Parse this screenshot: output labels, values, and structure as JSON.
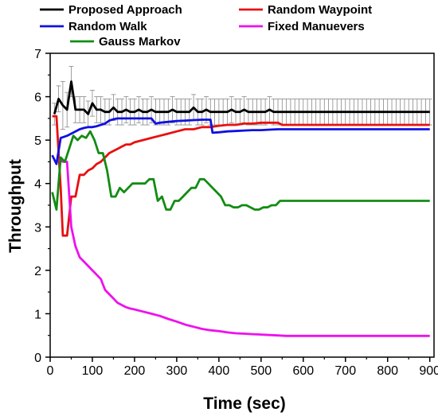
{
  "chart_data": {
    "type": "line",
    "xlabel": "Time (sec)",
    "ylabel": "Throughput",
    "xlim": [
      0,
      910
    ],
    "ylim": [
      0,
      7
    ],
    "xticks": [
      0,
      100,
      200,
      300,
      400,
      500,
      600,
      700,
      800,
      900
    ],
    "yticks": [
      0,
      1,
      2,
      3,
      4,
      5,
      6,
      7
    ],
    "grid": false,
    "legend_position": "top",
    "series": [
      {
        "name": "Proposed Approach",
        "color": "#000000",
        "error_bars": true,
        "x": [
          10,
          20,
          30,
          40,
          50,
          60,
          70,
          80,
          90,
          100,
          110,
          120,
          130,
          140,
          150,
          160,
          170,
          180,
          190,
          200,
          210,
          220,
          230,
          240,
          250,
          260,
          270,
          280,
          290,
          300,
          310,
          320,
          330,
          340,
          350,
          360,
          370,
          380,
          390,
          400,
          410,
          420,
          430,
          440,
          450,
          460,
          470,
          480,
          490,
          500,
          510,
          520,
          530,
          540,
          550,
          560,
          570,
          580,
          590,
          600,
          610,
          620,
          630,
          640,
          650,
          660,
          670,
          680,
          690,
          700,
          710,
          720,
          730,
          740,
          750,
          760,
          770,
          780,
          790,
          800,
          810,
          820,
          830,
          840,
          850,
          860,
          870,
          880,
          890,
          900
        ],
        "y": [
          5.6,
          5.95,
          5.8,
          5.7,
          6.35,
          5.7,
          5.7,
          5.7,
          5.6,
          5.85,
          5.7,
          5.7,
          5.65,
          5.65,
          5.75,
          5.65,
          5.65,
          5.7,
          5.65,
          5.65,
          5.7,
          5.65,
          5.65,
          5.7,
          5.65,
          5.65,
          5.65,
          5.65,
          5.7,
          5.65,
          5.65,
          5.65,
          5.65,
          5.75,
          5.65,
          5.65,
          5.7,
          5.65,
          5.65,
          5.65,
          5.65,
          5.65,
          5.7,
          5.65,
          5.65,
          5.7,
          5.65,
          5.65,
          5.65,
          5.65,
          5.65,
          5.7,
          5.65,
          5.65,
          5.65,
          5.65,
          5.65,
          5.65,
          5.65,
          5.65,
          5.65,
          5.65,
          5.65,
          5.65,
          5.65,
          5.65,
          5.65,
          5.65,
          5.65,
          5.65,
          5.65,
          5.65,
          5.65,
          5.65,
          5.65,
          5.65,
          5.65,
          5.65,
          5.65,
          5.65,
          5.65,
          5.65,
          5.65,
          5.65,
          5.65,
          5.65,
          5.65,
          5.65,
          5.65,
          5.65
        ],
        "err": [
          0.25,
          0.3,
          0.55,
          0.4,
          0.35,
          0.3,
          0.3,
          0.3,
          0.3,
          0.3,
          0.3,
          0.3,
          0.3,
          0.3,
          0.3,
          0.3,
          0.3,
          0.3,
          0.3,
          0.3,
          0.3,
          0.3,
          0.3,
          0.3,
          0.3,
          0.3,
          0.3,
          0.3,
          0.3,
          0.3,
          0.3,
          0.3,
          0.3,
          0.3,
          0.3,
          0.3,
          0.3,
          0.3,
          0.3,
          0.3,
          0.3,
          0.3,
          0.3,
          0.3,
          0.3,
          0.3,
          0.3,
          0.3,
          0.3,
          0.3,
          0.3,
          0.3,
          0.3,
          0.3,
          0.3,
          0.3,
          0.3,
          0.3,
          0.3,
          0.3,
          0.3,
          0.3,
          0.3,
          0.3,
          0.3,
          0.3,
          0.3,
          0.3,
          0.3,
          0.3,
          0.3,
          0.3,
          0.3,
          0.3,
          0.3,
          0.3,
          0.3,
          0.3,
          0.3,
          0.3,
          0.3,
          0.3,
          0.3,
          0.3,
          0.3,
          0.3,
          0.3,
          0.3,
          0.3,
          0.3
        ]
      },
      {
        "name": "Random Waypoint",
        "color": "#e8100f",
        "x": [
          5,
          15,
          25,
          30,
          40,
          50,
          60,
          70,
          80,
          90,
          100,
          110,
          120,
          130,
          140,
          150,
          160,
          170,
          180,
          190,
          200,
          220,
          240,
          260,
          280,
          300,
          320,
          340,
          360,
          380,
          400,
          420,
          440,
          460,
          480,
          500,
          520,
          540,
          550,
          560,
          600,
          700,
          800,
          900
        ],
        "y": [
          5.55,
          5.55,
          3.9,
          2.8,
          2.8,
          3.7,
          3.7,
          4.2,
          4.2,
          4.3,
          4.35,
          4.45,
          4.5,
          4.6,
          4.7,
          4.75,
          4.8,
          4.85,
          4.9,
          4.9,
          4.95,
          5.0,
          5.05,
          5.1,
          5.15,
          5.2,
          5.25,
          5.25,
          5.3,
          5.3,
          5.33,
          5.35,
          5.35,
          5.38,
          5.38,
          5.4,
          5.4,
          5.4,
          5.35,
          5.35,
          5.35,
          5.35,
          5.35,
          5.35
        ]
      },
      {
        "name": "Random Walk",
        "color": "#1010e0",
        "x": [
          5,
          15,
          25,
          40,
          50,
          60,
          70,
          80,
          90,
          100,
          110,
          120,
          130,
          140,
          150,
          160,
          170,
          180,
          190,
          200,
          220,
          240,
          250,
          260,
          280,
          300,
          320,
          340,
          360,
          380,
          385,
          400,
          420,
          440,
          460,
          480,
          500,
          520,
          540,
          560,
          600,
          700,
          800,
          900
        ],
        "y": [
          4.65,
          4.45,
          5.05,
          5.1,
          5.15,
          5.2,
          5.25,
          5.28,
          5.3,
          5.3,
          5.32,
          5.35,
          5.38,
          5.45,
          5.48,
          5.5,
          5.5,
          5.5,
          5.5,
          5.5,
          5.5,
          5.5,
          5.38,
          5.4,
          5.42,
          5.44,
          5.45,
          5.46,
          5.47,
          5.47,
          5.17,
          5.18,
          5.2,
          5.21,
          5.22,
          5.23,
          5.23,
          5.24,
          5.25,
          5.25,
          5.25,
          5.25,
          5.25,
          5.25
        ]
      },
      {
        "name": "Fixed Manuevers",
        "color": "#ee10ee",
        "x": [
          20,
          30,
          40,
          50,
          60,
          70,
          80,
          90,
          100,
          110,
          120,
          130,
          140,
          150,
          160,
          170,
          180,
          190,
          200,
          220,
          240,
          260,
          280,
          300,
          320,
          340,
          360,
          380,
          400,
          420,
          440,
          460,
          480,
          500,
          520,
          540,
          560,
          600,
          700,
          800,
          900
        ],
        "y": [
          4.55,
          4.5,
          4.5,
          3.0,
          2.55,
          2.3,
          2.2,
          2.1,
          2.0,
          1.9,
          1.8,
          1.55,
          1.45,
          1.35,
          1.25,
          1.2,
          1.15,
          1.12,
          1.1,
          1.05,
          1.0,
          0.95,
          0.88,
          0.82,
          0.75,
          0.7,
          0.65,
          0.62,
          0.6,
          0.57,
          0.55,
          0.54,
          0.53,
          0.52,
          0.51,
          0.5,
          0.49,
          0.49,
          0.49,
          0.49,
          0.49
        ]
      },
      {
        "name": "Gauss Markov",
        "color": "#128c12",
        "x": [
          5,
          15,
          25,
          35,
          45,
          55,
          65,
          75,
          85,
          95,
          105,
          115,
          125,
          135,
          145,
          155,
          165,
          175,
          185,
          195,
          205,
          215,
          225,
          235,
          245,
          255,
          265,
          275,
          285,
          295,
          305,
          315,
          325,
          335,
          345,
          355,
          365,
          375,
          385,
          395,
          405,
          415,
          425,
          435,
          445,
          455,
          465,
          475,
          485,
          495,
          505,
          515,
          525,
          535,
          545,
          555,
          600,
          700,
          800,
          900
        ],
        "y": [
          3.8,
          3.4,
          4.6,
          4.5,
          4.8,
          5.1,
          5.0,
          5.1,
          5.05,
          5.2,
          5.0,
          4.7,
          4.7,
          4.3,
          3.7,
          3.7,
          3.9,
          3.8,
          3.9,
          4.0,
          4.0,
          4.0,
          4.0,
          4.1,
          4.1,
          3.6,
          3.7,
          3.4,
          3.4,
          3.6,
          3.6,
          3.7,
          3.8,
          3.9,
          3.9,
          4.1,
          4.1,
          4.0,
          3.9,
          3.8,
          3.7,
          3.5,
          3.5,
          3.45,
          3.45,
          3.5,
          3.5,
          3.45,
          3.4,
          3.4,
          3.45,
          3.45,
          3.5,
          3.5,
          3.6,
          3.6,
          3.6,
          3.6,
          3.6,
          3.6
        ]
      }
    ]
  }
}
